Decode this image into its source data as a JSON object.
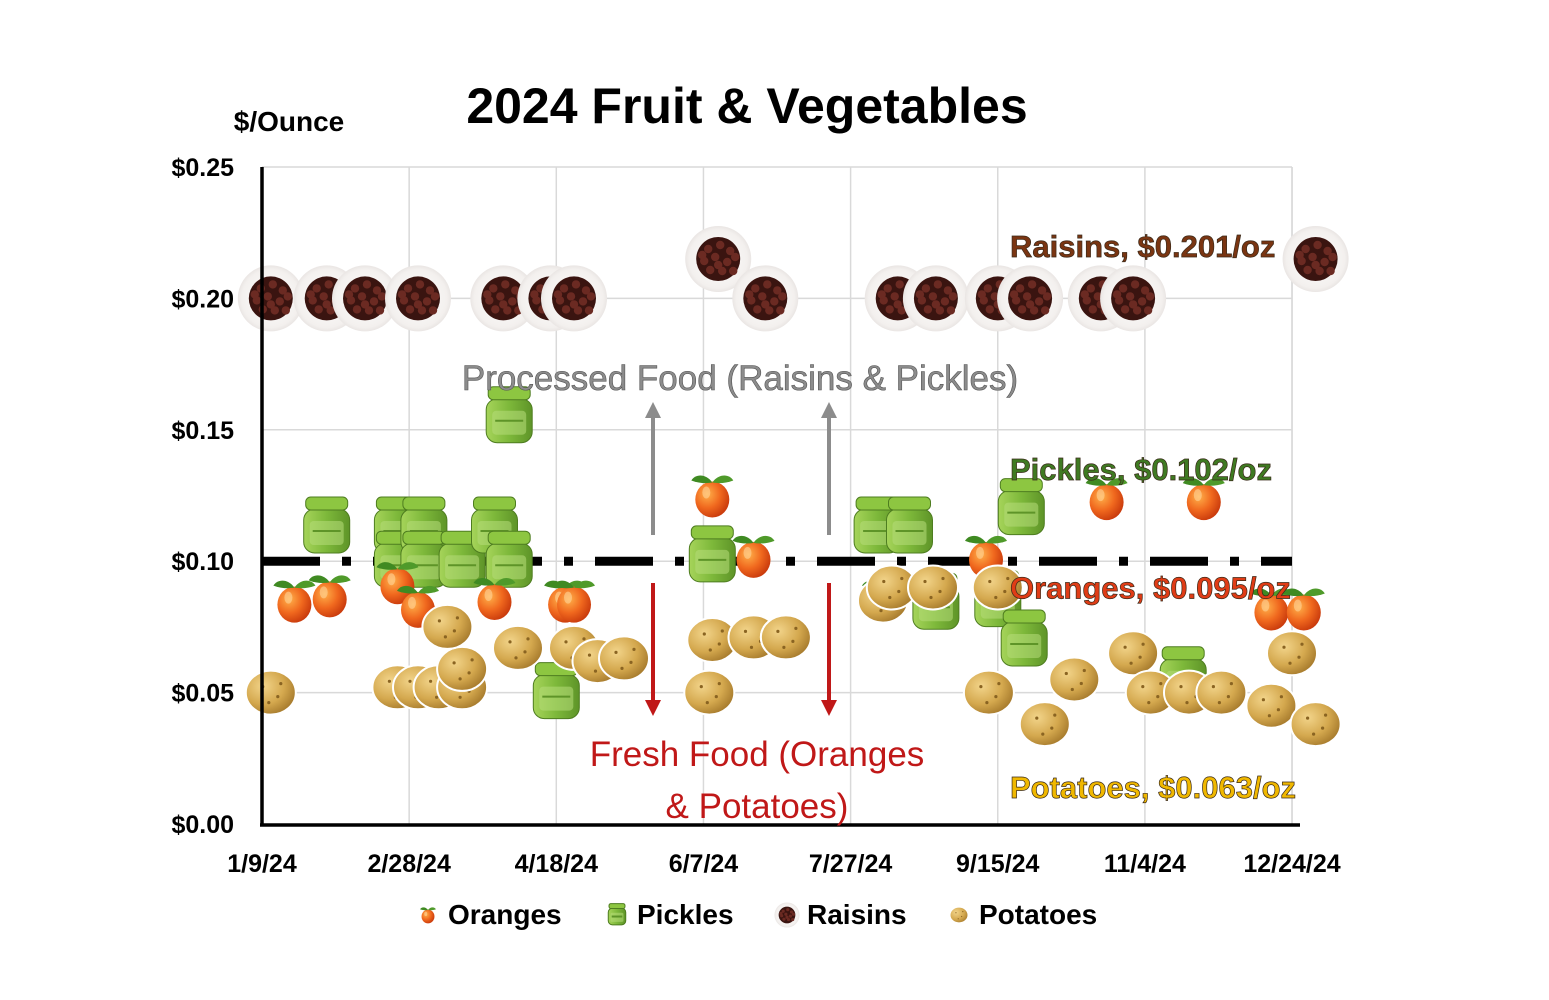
{
  "chart_data": {
    "type": "scatter",
    "title": "2024 Fruit & Vegetables",
    "ylabel": "$/Ounce",
    "xlabel": "",
    "ylim": [
      0,
      0.25
    ],
    "xlim": [
      "2024-01-09",
      "2025-01-03"
    ],
    "y_ticks": [
      "$0.00",
      "$0.05",
      "$0.10",
      "$0.15",
      "$0.20",
      "$0.25"
    ],
    "x_ticks": [
      "1/9/24",
      "2/28/24",
      "4/18/24",
      "6/7/24",
      "7/27/24",
      "9/15/24",
      "11/4/24",
      "12/24/24"
    ],
    "grid": true,
    "legend_position": "bottom",
    "reference_line": {
      "y": 0.1,
      "style": "dash-dot",
      "color": "#000000"
    },
    "series": [
      {
        "name": "Oranges",
        "color": "#e8531c",
        "icon": "orange-icon",
        "points": [
          [
            "2024-01-20",
            0.085
          ],
          [
            "2024-02-01",
            0.087
          ],
          [
            "2024-02-24",
            0.092
          ],
          [
            "2024-03-02",
            0.083
          ],
          [
            "2024-03-28",
            0.086
          ],
          [
            "2024-04-21",
            0.085
          ],
          [
            "2024-04-24",
            0.085
          ],
          [
            "2024-06-10",
            0.125
          ],
          [
            "2024-06-24",
            0.102
          ],
          [
            "2024-08-07",
            0.085
          ],
          [
            "2024-09-11",
            0.102
          ],
          [
            "2024-10-22",
            0.124
          ],
          [
            "2024-11-24",
            0.124
          ],
          [
            "2024-12-17",
            0.082
          ],
          [
            "2024-12-28",
            0.082
          ]
        ]
      },
      {
        "name": "Pickles",
        "color": "#8cbf3a",
        "icon": "pickle-jar-icon",
        "points": [
          [
            "2024-01-31",
            0.113
          ],
          [
            "2024-02-24",
            0.113
          ],
          [
            "2024-02-24",
            0.1
          ],
          [
            "2024-03-04",
            0.113
          ],
          [
            "2024-03-04",
            0.1
          ],
          [
            "2024-03-17",
            0.1
          ],
          [
            "2024-03-28",
            0.113
          ],
          [
            "2024-04-02",
            0.1
          ],
          [
            "2024-04-02",
            0.155
          ],
          [
            "2024-04-18",
            0.05
          ],
          [
            "2024-06-10",
            0.102
          ],
          [
            "2024-08-05",
            0.113
          ],
          [
            "2024-08-16",
            0.113
          ],
          [
            "2024-08-25",
            0.084
          ],
          [
            "2024-09-15",
            0.085
          ],
          [
            "2024-09-23",
            0.12
          ],
          [
            "2024-09-24",
            0.07
          ],
          [
            "2024-11-17",
            0.056
          ]
        ]
      },
      {
        "name": "Raisins",
        "color": "#4a1a14",
        "icon": "raisin-icon",
        "points": [
          [
            "2024-01-12",
            0.2
          ],
          [
            "2024-01-31",
            0.2
          ],
          [
            "2024-02-13",
            0.2
          ],
          [
            "2024-03-02",
            0.2
          ],
          [
            "2024-03-31",
            0.2
          ],
          [
            "2024-04-16",
            0.2
          ],
          [
            "2024-04-24",
            0.2
          ],
          [
            "2024-06-12",
            0.215
          ],
          [
            "2024-06-28",
            0.2
          ],
          [
            "2024-08-12",
            0.2
          ],
          [
            "2024-08-25",
            0.2
          ],
          [
            "2024-09-15",
            0.2
          ],
          [
            "2024-09-26",
            0.2
          ],
          [
            "2024-10-20",
            0.2
          ],
          [
            "2024-10-31",
            0.2
          ],
          [
            "2025-01-01",
            0.215
          ]
        ]
      },
      {
        "name": "Potatoes",
        "color": "#c9a24a",
        "icon": "potato-icon",
        "points": [
          [
            "2024-01-12",
            0.05
          ],
          [
            "2024-02-24",
            0.052
          ],
          [
            "2024-03-02",
            0.052
          ],
          [
            "2024-03-09",
            0.052
          ],
          [
            "2024-03-17",
            0.052
          ],
          [
            "2024-03-17",
            0.059
          ],
          [
            "2024-03-12",
            0.075
          ],
          [
            "2024-04-05",
            0.067
          ],
          [
            "2024-04-24",
            0.067
          ],
          [
            "2024-05-02",
            0.062
          ],
          [
            "2024-05-11",
            0.063
          ],
          [
            "2024-06-09",
            0.05
          ],
          [
            "2024-06-10",
            0.07
          ],
          [
            "2024-06-24",
            0.071
          ],
          [
            "2024-07-05",
            0.071
          ],
          [
            "2024-07-05",
            0.071
          ],
          [
            "2024-08-07",
            0.085
          ],
          [
            "2024-08-10",
            0.09
          ],
          [
            "2024-08-24",
            0.09
          ],
          [
            "2024-09-12",
            0.05
          ],
          [
            "2024-09-15",
            0.09
          ],
          [
            "2024-10-01",
            0.038
          ],
          [
            "2024-10-11",
            0.055
          ],
          [
            "2024-10-31",
            0.065
          ],
          [
            "2024-11-06",
            0.05
          ],
          [
            "2024-11-19",
            0.05
          ],
          [
            "2024-11-30",
            0.05
          ],
          [
            "2024-12-17",
            0.045
          ],
          [
            "2024-12-24",
            0.065
          ],
          [
            "2025-01-01",
            0.038
          ]
        ]
      }
    ],
    "annotations": [
      {
        "text": "Raisins, $0.201/oz",
        "color": "#7a3512",
        "y": 0.22
      },
      {
        "text": "Pickles, $0.102/oz",
        "color": "#3f7a22",
        "y": 0.135
      },
      {
        "text": "Oranges, $0.095/oz",
        "color": "#e03c16",
        "y": 0.09
      },
      {
        "text": "Potatoes, $0.063/oz",
        "color": "#f0b800",
        "y": 0.014
      }
    ],
    "processed_label": "Processed Food (Raisins & Pickles)",
    "fresh_label_lines": [
      "Fresh Food (Oranges",
      "& Potatoes)"
    ]
  }
}
